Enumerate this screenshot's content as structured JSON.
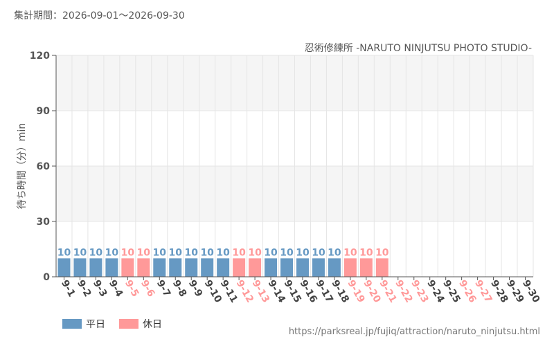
{
  "header": {
    "period_label": "集計期間：2026-09-01～2026-09-30"
  },
  "source_url": "https://parksreal.jp/fujiq/attraction/naruto_ninjutsu.html",
  "colors": {
    "weekday": "#6699C3",
    "holiday": "#FF9999",
    "grid": "#E5E5E5",
    "band": "#F5F5F5",
    "axis": "#555555"
  },
  "chart_data": {
    "type": "bar",
    "title": "忍術修練所 -NARUTO NINJUTSU PHOTO STUDIO-",
    "ylabel": "待ち時間（分）min",
    "xlabel": "",
    "ylim": [
      0,
      120
    ],
    "yticks": [
      0,
      30,
      60,
      90,
      120
    ],
    "grid": true,
    "legend_position": "bottom-left",
    "legend": [
      {
        "key": "weekday",
        "label": "平日"
      },
      {
        "key": "holiday",
        "label": "休日"
      }
    ],
    "categories": [
      "9-1",
      "9-2",
      "9-3",
      "9-4",
      "9-5",
      "9-6",
      "9-7",
      "9-8",
      "9-9",
      "9-10",
      "9-11",
      "9-12",
      "9-13",
      "9-14",
      "9-15",
      "9-16",
      "9-17",
      "9-18",
      "9-19",
      "9-20",
      "9-21",
      "9-22",
      "9-23",
      "9-24",
      "9-25",
      "9-26",
      "9-27",
      "9-28",
      "9-29",
      "9-30"
    ],
    "day_types": [
      "weekday",
      "weekday",
      "weekday",
      "weekday",
      "holiday",
      "holiday",
      "weekday",
      "weekday",
      "weekday",
      "weekday",
      "weekday",
      "holiday",
      "holiday",
      "weekday",
      "weekday",
      "weekday",
      "weekday",
      "weekday",
      "holiday",
      "holiday",
      "holiday",
      "holiday",
      "holiday",
      "weekday",
      "weekday",
      "holiday",
      "holiday",
      "weekday",
      "weekday",
      "weekday"
    ],
    "values": [
      10,
      10,
      10,
      10,
      10,
      10,
      10,
      10,
      10,
      10,
      10,
      10,
      10,
      10,
      10,
      10,
      10,
      10,
      10,
      10,
      10,
      null,
      null,
      null,
      null,
      null,
      null,
      null,
      null,
      null
    ]
  }
}
